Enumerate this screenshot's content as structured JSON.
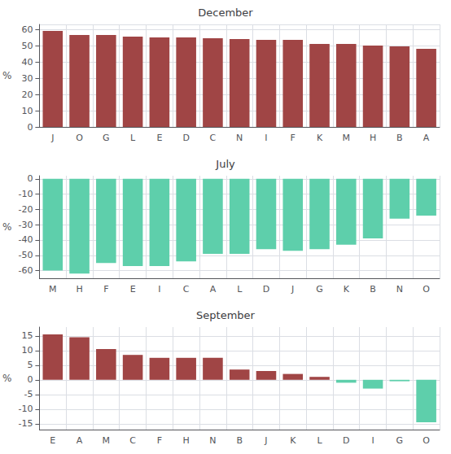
{
  "chart_data": [
    {
      "type": "bar",
      "title": "December",
      "categories": [
        "J",
        "O",
        "G",
        "L",
        "E",
        "D",
        "C",
        "N",
        "I",
        "F",
        "K",
        "M",
        "H",
        "B",
        "A"
      ],
      "values": [
        59,
        56.5,
        56.5,
        55.5,
        55,
        55,
        54.5,
        54,
        53.5,
        53.5,
        51,
        51,
        50,
        49.5,
        48
      ],
      "colors": [
        "#a04545",
        "#a04545",
        "#a04545",
        "#a04545",
        "#a04545",
        "#a04545",
        "#a04545",
        "#a04545",
        "#a04545",
        "#a04545",
        "#a04545",
        "#a04545",
        "#a04545",
        "#a04545",
        "#a04545"
      ],
      "ylabel": "%",
      "ylim": [
        0,
        63
      ],
      "yticks": [
        0,
        10,
        20,
        30,
        40,
        50,
        60
      ],
      "grid": true
    },
    {
      "type": "bar",
      "title": "July",
      "categories": [
        "M",
        "H",
        "F",
        "E",
        "I",
        "C",
        "A",
        "L",
        "D",
        "J",
        "G",
        "K",
        "B",
        "N",
        "O"
      ],
      "values": [
        -60,
        -62,
        -55,
        -57,
        -57,
        -54,
        -49,
        -49,
        -46,
        -47,
        -46,
        -43,
        -39,
        -26,
        -24
      ],
      "colors": [
        "#5ecfab",
        "#5ecfab",
        "#5ecfab",
        "#5ecfab",
        "#5ecfab",
        "#5ecfab",
        "#5ecfab",
        "#5ecfab",
        "#5ecfab",
        "#5ecfab",
        "#5ecfab",
        "#5ecfab",
        "#5ecfab",
        "#5ecfab",
        "#5ecfab"
      ],
      "ylabel": "%",
      "ylim": [
        -65,
        2
      ],
      "yticks": [
        -60,
        -50,
        -40,
        -30,
        -20,
        -10,
        0
      ],
      "grid": true
    },
    {
      "type": "bar",
      "title": "September",
      "categories": [
        "E",
        "A",
        "M",
        "C",
        "F",
        "H",
        "N",
        "B",
        "J",
        "K",
        "L",
        "D",
        "I",
        "G",
        "O"
      ],
      "values": [
        15.5,
        14.5,
        10.5,
        8.5,
        7.5,
        7.5,
        7.5,
        3.5,
        3.0,
        2.0,
        1.0,
        -1.0,
        -3.0,
        -0.5,
        -14.5
      ],
      "colors": [
        "#a04545",
        "#a04545",
        "#a04545",
        "#a04545",
        "#a04545",
        "#a04545",
        "#a04545",
        "#a04545",
        "#a04545",
        "#a04545",
        "#a04545",
        "#5ecfab",
        "#5ecfab",
        "#5ecfab",
        "#5ecfab"
      ],
      "ylabel": "%",
      "ylim": [
        -17,
        18
      ],
      "yticks": [
        -15,
        -10,
        -5,
        0,
        5,
        10,
        15
      ],
      "grid": true
    }
  ]
}
